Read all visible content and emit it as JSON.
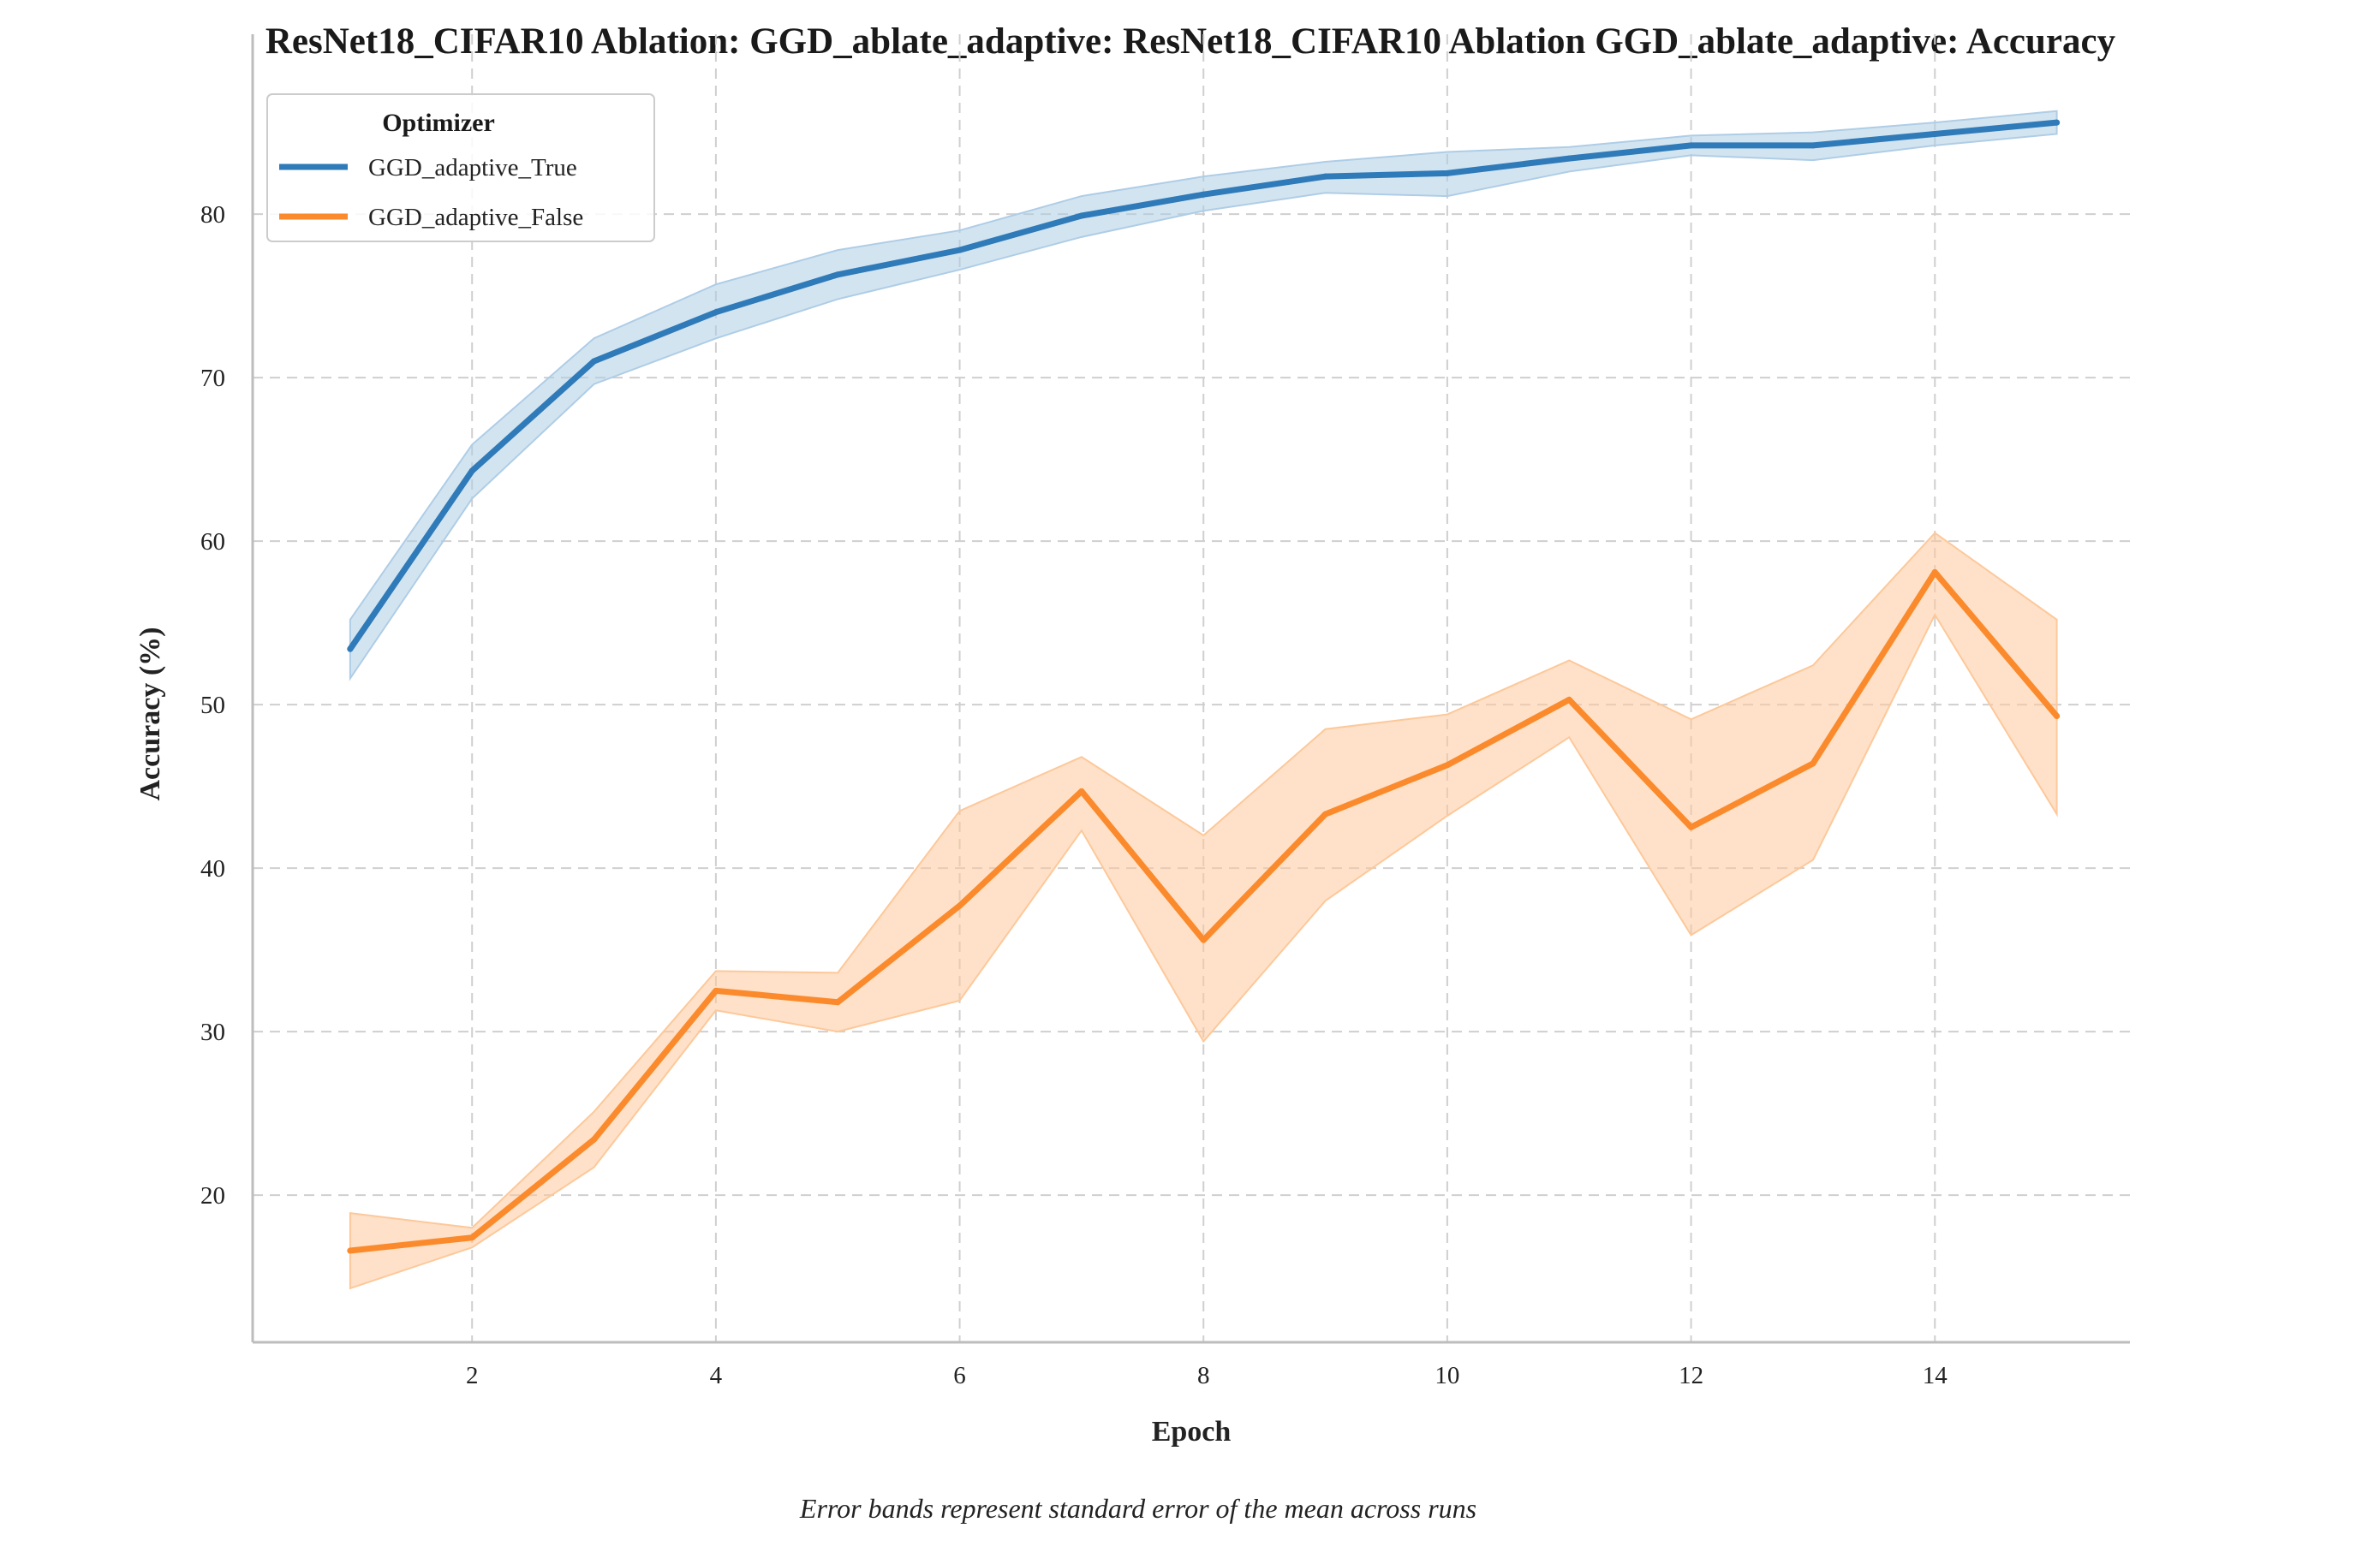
{
  "chart_data": {
    "type": "line",
    "title": "ResNet18_CIFAR10 Ablation: GGD_ablate_adaptive: ResNet18_CIFAR10 Ablation GGD_ablate_adaptive: Accuracy",
    "xlabel": "Epoch",
    "ylabel": "Accuracy (%)",
    "caption": "Error bands represent standard error of the mean across runs",
    "xlim": [
      0.2,
      15.6
    ],
    "ylim": [
      11,
      91
    ],
    "xticks": [
      2,
      4,
      6,
      8,
      10,
      12,
      14
    ],
    "yticks": [
      20,
      30,
      40,
      50,
      60,
      70,
      80
    ],
    "grid": true,
    "legend": {
      "title": "Optimizer",
      "position": "top-left"
    },
    "x": [
      1,
      2,
      3,
      4,
      5,
      6,
      7,
      8,
      9,
      10,
      11,
      12,
      13,
      14,
      15
    ],
    "series": [
      {
        "name": "GGD_adaptive_True",
        "color": "#2f7ab8",
        "band_color": "#aecde6",
        "values": [
          53.4,
          64.3,
          71.0,
          74.0,
          76.3,
          77.8,
          79.9,
          81.2,
          82.3,
          82.5,
          83.4,
          84.2,
          84.2,
          84.9,
          85.6
        ],
        "lower": [
          51.6,
          62.6,
          69.6,
          72.4,
          74.8,
          76.6,
          78.6,
          80.2,
          81.3,
          81.1,
          82.6,
          83.6,
          83.3,
          84.2,
          84.9
        ],
        "upper": [
          55.2,
          65.9,
          72.4,
          75.7,
          77.8,
          79.0,
          81.1,
          82.3,
          83.2,
          83.8,
          84.1,
          84.8,
          85.0,
          85.6,
          86.3
        ]
      },
      {
        "name": "GGD_adaptive_False",
        "color": "#fb8a2c",
        "band_color": "#fdc89a",
        "values": [
          16.6,
          17.4,
          23.4,
          32.5,
          31.8,
          37.7,
          44.7,
          35.6,
          43.3,
          46.3,
          50.3,
          42.5,
          46.4,
          58.1,
          49.3
        ],
        "lower": [
          14.3,
          16.8,
          21.7,
          31.3,
          30.0,
          31.9,
          42.3,
          29.4,
          38.0,
          43.2,
          48.0,
          35.9,
          40.5,
          55.5,
          43.3
        ],
        "upper": [
          18.9,
          18.0,
          25.1,
          33.7,
          33.6,
          43.5,
          46.8,
          42.0,
          48.5,
          49.4,
          52.7,
          49.1,
          52.4,
          60.5,
          55.2
        ]
      }
    ]
  }
}
